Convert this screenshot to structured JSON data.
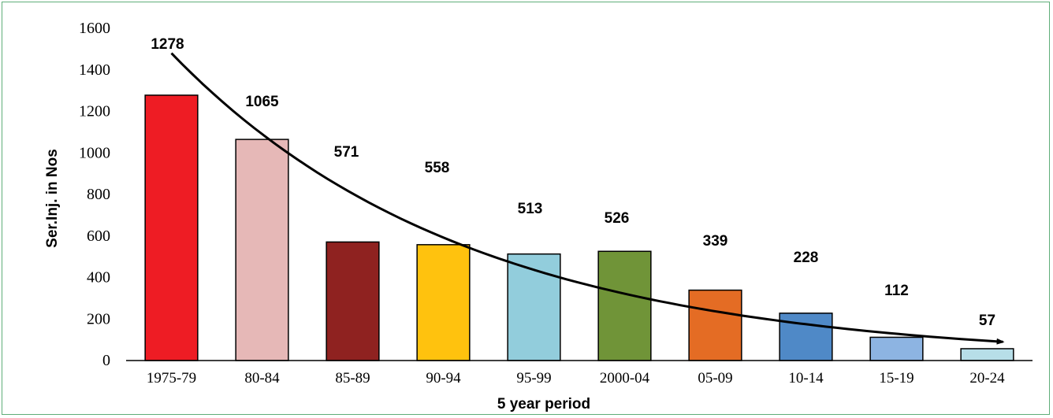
{
  "chart_data": {
    "type": "bar",
    "title": "",
    "xlabel": "5 year period",
    "ylabel": "Ser.Inj. in Nos",
    "ylim": [
      0,
      1600
    ],
    "yticks": [
      0,
      200,
      400,
      600,
      800,
      1000,
      1200,
      1400,
      1600
    ],
    "grid": false,
    "legend": "none",
    "categories": [
      "1975-79",
      "80-84",
      "85-89",
      "90-94",
      "95-99",
      "2000-04",
      "05-09",
      "10-14",
      "15-19",
      "20-24"
    ],
    "values": [
      1278,
      1065,
      571,
      558,
      513,
      526,
      339,
      228,
      112,
      57
    ],
    "data_labels": [
      "1278",
      "1065",
      "571",
      "558",
      "513",
      "526",
      "339",
      "228",
      "112",
      "57"
    ],
    "bar_colors": [
      "#ee1c24",
      "#e6b8b7",
      "#8f2220",
      "#ffc20e",
      "#92cddc",
      "#709438",
      "#e46c24",
      "#4f89c7",
      "#8db4e2",
      "#b7dee8"
    ],
    "trend": {
      "type": "exponential",
      "color": "#000000",
      "arrow": true,
      "start_y": 1480,
      "end_y": 90
    }
  }
}
